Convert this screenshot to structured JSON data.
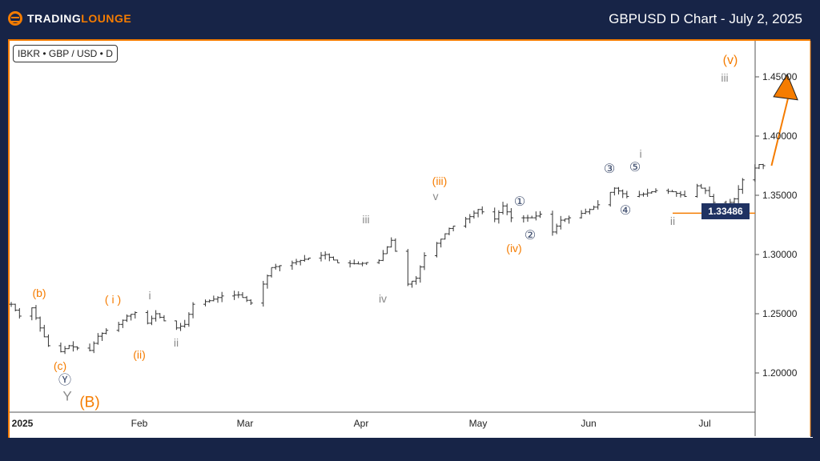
{
  "header": {
    "title": "GBPUSD D Chart - July 2, 2025",
    "logo_text_1": "TRADING",
    "logo_text_2": "LOUNGE",
    "logo_mark": "TM"
  },
  "symbol_label": "IBKR • GBP / USD • D",
  "current_price_tag": "1.33486",
  "colors": {
    "background": "#172447",
    "orange": "#f57c00",
    "wave_grey": "#8a8a8a",
    "wave_navy": "#3b4a6b",
    "price_tag": "#1f3262"
  },
  "wave_labels": {
    "b": "(b)",
    "c": "(c)",
    "Y_circle": "Ⓨ",
    "Y": "Y",
    "B": "(B)",
    "i_orange": "( i )",
    "ii_orange": "(ii)",
    "i_grey": "i",
    "ii_grey": "ii",
    "iii_grey": "iii",
    "iv_grey": "iv",
    "v_grey": "v",
    "iii_orange": "(iii)",
    "iv_orange": "(iv)",
    "c1": "①",
    "c2": "②",
    "c3": "③",
    "c4": "④",
    "c5": "⑤",
    "i_grey2": "i",
    "ii_grey2": "ii",
    "iii_grey2": "iii",
    "v_orange": "(v)"
  },
  "chart_data": {
    "type": "ohlc",
    "title": "",
    "y_ticks": [
      "1.45000",
      "1.40000",
      "1.35000",
      "1.30000",
      "1.25000",
      "1.20000"
    ],
    "ylim": [
      1.165,
      1.485
    ],
    "x_ticks": [
      "2025",
      "Feb",
      "Mar",
      "Apr",
      "May",
      "Jun",
      "Jul"
    ],
    "horizontal_line": 1.33486,
    "projection_arrow": {
      "from": [
        "2025-07-04",
        1.375
      ],
      "to": [
        "2025-07-08",
        1.44
      ]
    },
    "closes": [
      [
        "2025-01-01",
        1.258
      ],
      [
        "2025-01-03",
        1.248
      ],
      [
        "2025-01-06",
        1.255
      ],
      [
        "2025-01-08",
        1.238
      ],
      [
        "2025-01-10",
        1.223
      ],
      [
        "2025-01-13",
        1.218
      ],
      [
        "2025-01-15",
        1.223
      ],
      [
        "2025-01-17",
        1.221
      ],
      [
        "2025-01-20",
        1.219
      ],
      [
        "2025-01-22",
        1.231
      ],
      [
        "2025-01-24",
        1.236
      ],
      [
        "2025-01-27",
        1.241
      ],
      [
        "2025-01-29",
        1.248
      ],
      [
        "2025-01-31",
        1.251
      ],
      [
        "2025-02-03",
        1.242
      ],
      [
        "2025-02-05",
        1.25
      ],
      [
        "2025-02-07",
        1.244
      ],
      [
        "2025-02-10",
        1.238
      ],
      [
        "2025-02-12",
        1.241
      ],
      [
        "2025-02-14",
        1.258
      ],
      [
        "2025-02-18",
        1.261
      ],
      [
        "2025-02-21",
        1.265
      ],
      [
        "2025-02-25",
        1.266
      ],
      [
        "2025-02-28",
        1.259
      ],
      [
        "2025-03-03",
        1.275
      ],
      [
        "2025-03-05",
        1.289
      ],
      [
        "2025-03-10",
        1.293
      ],
      [
        "2025-03-14",
        1.297
      ],
      [
        "2025-03-18",
        1.3
      ],
      [
        "2025-03-21",
        1.293
      ],
      [
        "2025-03-26",
        1.292
      ],
      [
        "2025-03-31",
        1.295
      ],
      [
        "2025-04-03",
        1.312
      ],
      [
        "2025-04-07",
        1.275
      ],
      [
        "2025-04-09",
        1.28
      ],
      [
        "2025-04-11",
        1.299
      ],
      [
        "2025-04-15",
        1.313
      ],
      [
        "2025-04-17",
        1.322
      ],
      [
        "2025-04-22",
        1.332
      ],
      [
        "2025-04-24",
        1.338
      ],
      [
        "2025-04-28",
        1.33
      ],
      [
        "2025-04-30",
        1.341
      ],
      [
        "2025-05-02",
        1.331
      ],
      [
        "2025-05-07",
        1.331
      ],
      [
        "2025-05-09",
        1.334
      ],
      [
        "2025-05-12",
        1.319
      ],
      [
        "2025-05-14",
        1.329
      ],
      [
        "2025-05-16",
        1.331
      ],
      [
        "2025-05-20",
        1.336
      ],
      [
        "2025-05-23",
        1.342
      ],
      [
        "2025-05-27",
        1.356
      ],
      [
        "2025-05-30",
        1.349
      ],
      [
        "2025-06-03",
        1.351
      ],
      [
        "2025-06-06",
        1.354
      ],
      [
        "2025-06-10",
        1.353
      ],
      [
        "2025-06-13",
        1.349
      ],
      [
        "2025-06-16",
        1.358
      ],
      [
        "2025-06-18",
        1.354
      ],
      [
        "2025-06-20",
        1.344
      ],
      [
        "2025-06-23",
        1.341
      ],
      [
        "2025-06-25",
        1.347
      ],
      [
        "2025-06-27",
        1.363
      ],
      [
        "2025-06-30",
        1.373
      ],
      [
        "2025-07-01",
        1.376
      ],
      [
        "2025-07-02",
        1.375
      ]
    ]
  }
}
